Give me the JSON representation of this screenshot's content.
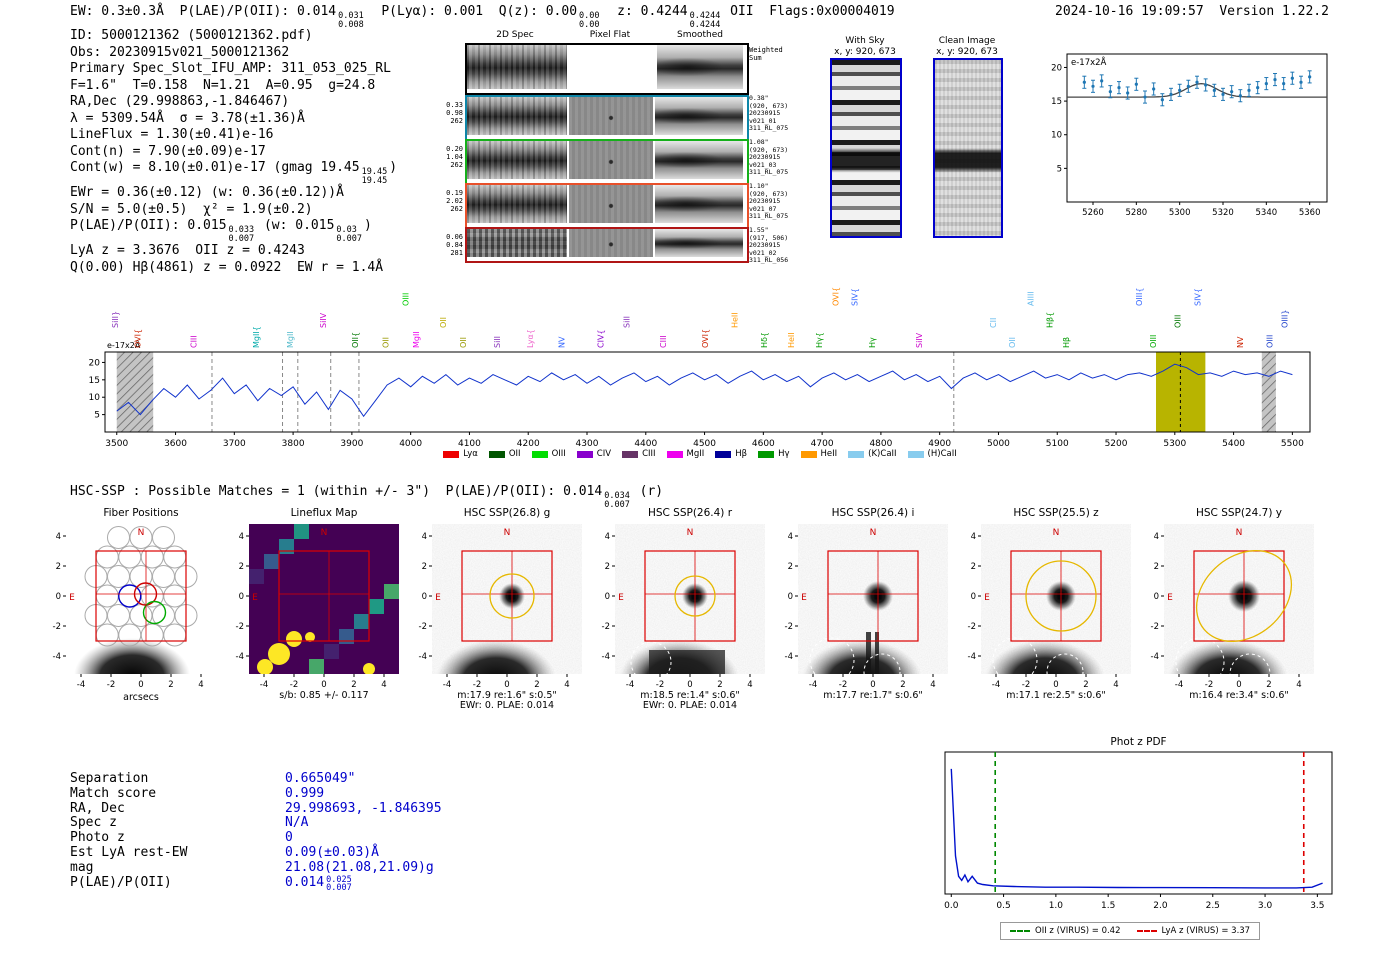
{
  "header_left": [
    {
      "t": "EW: 0.3±0.3Å  P(LAE)/P(OII): 0.014"
    },
    {
      "f": [
        "0.031",
        "0.008"
      ]
    },
    {
      "t": "  P(Lyα): 0.001  Q(z): 0.00"
    },
    {
      "f": [
        "0.00",
        "0.00"
      ]
    },
    {
      "t": "  z: 0.4244"
    },
    {
      "f": [
        "0.4244",
        "0.4244"
      ]
    },
    {
      "t": " OII  Flags:0x00004019"
    }
  ],
  "header_right": "2024-10-16 19:09:57  Version 1.22.2",
  "info_lines": [
    [
      {
        "t": "ID: 5000121362 (5000121362.pdf)"
      }
    ],
    [
      {
        "t": "Obs: 20230915v021_5000121362"
      }
    ],
    [
      {
        "t": "Primary Spec_Slot_IFU_AMP: 311_053_025_RL"
      }
    ],
    [
      {
        "t": "F=1.6\"  T=0.158  N=1.21  A=0.95  g=24.8"
      }
    ],
    [
      {
        "t": "RA,Dec (29.998863,-1.846467)"
      }
    ],
    [
      {
        "t": "λ = 5309.54Å  σ = 3.78(±1.36)Å"
      }
    ],
    [
      {
        "t": "LineFlux = 1.30(±0.41)e-16"
      }
    ],
    [
      {
        "t": "Cont(n) = 7.90(±0.09)e-17"
      }
    ],
    [
      {
        "t": "Cont(w) = 8.10(±0.01)e-17 (gmag 19.45"
      },
      {
        "f": [
          "19.45",
          "19.45"
        ]
      },
      {
        "t": ")"
      }
    ],
    [
      {
        "t": "EWr = 0.36(±0.12) (w: 0.36(±0.12))Å"
      }
    ],
    [
      {
        "t": "S/N = 5.0(±0.5)  χ² = 1.9(±0.2)"
      }
    ],
    [
      {
        "t": "P(LAE)/P(OII): 0.015"
      },
      {
        "f": [
          "0.033",
          "0.007"
        ]
      },
      {
        "t": " (w: 0.015"
      },
      {
        "f": [
          "0.03",
          "0.007"
        ]
      },
      {
        "t": ")"
      }
    ],
    [
      {
        "t": "LyA z = 3.3676  OII z = 0.4243"
      }
    ],
    [
      {
        "t": "Q(0.00) Hβ(4861) z = 0.0922  EW r = 1.4Å"
      }
    ]
  ],
  "spec2d": {
    "col_titles": [
      "2D Spec",
      "Pixel Flat",
      "Smoothed"
    ],
    "weighted": [
      "Weighted",
      "Sum"
    ],
    "rows": [
      {
        "color": "#0e86a8",
        "left": [
          "0.33",
          "0.98",
          "262"
        ],
        "right": [
          "0.38\"",
          "(920, 673)",
          "20230915",
          "v021_01",
          "311_RL_075"
        ]
      },
      {
        "color": "#15b01a",
        "left": [
          "0.20",
          "1.04",
          "262"
        ],
        "right": [
          "1.08\"",
          "(920, 673)",
          "20230915",
          "v021_03",
          "311_RL_075"
        ]
      },
      {
        "color": "#e8502a",
        "left": [
          "0.19",
          "2.02",
          "262"
        ],
        "right": [
          "1.10\"",
          "(920, 673)",
          "20230915",
          "v021_07",
          "311_RL_075"
        ]
      },
      {
        "color": "#b01515",
        "left": [
          "0.06",
          "0.84",
          "281"
        ],
        "right": [
          "1.55\"",
          "(917, 506)",
          "20230915",
          "v021_02",
          "311_RL_056"
        ]
      }
    ]
  },
  "withsky": {
    "title": "With Sky",
    "coords": "x, y: 920, 673"
  },
  "clean": {
    "title": "Clean Image",
    "coords": "x, y: 920, 673"
  },
  "hsc_line": [
    {
      "t": "HSC-SSP : Possible Matches = 1 (within +/- 3\")  P(LAE)/P(OII): 0.014"
    },
    {
      "f": [
        "0.034",
        "0.007"
      ]
    },
    {
      "t": " (r)"
    }
  ],
  "cutouts": {
    "xlabel": "arcsecs",
    "ticks": [
      -4,
      -2,
      0,
      2,
      4
    ],
    "compass": {
      "n": "N",
      "e": "E"
    },
    "panels": [
      {
        "title": "Fiber Positions",
        "captions": []
      },
      {
        "title": "Lineflux Map",
        "captions": [
          "s/b: 0.85 +/- 0.117"
        ]
      },
      {
        "title": "HSC SSP(26.8) g",
        "captions": [
          "m:17.9 re:1.6\" s:0.5\"",
          "EWr: 0. PLAE: 0.014"
        ]
      },
      {
        "title": "HSC SSP(26.4) r",
        "captions": [
          "m:18.5 re:1.4\" s:0.6\"",
          "EWr: 0. PLAE: 0.014"
        ]
      },
      {
        "title": "HSC SSP(26.4) i",
        "captions": [
          "m:17.7 re:1.7\" s:0.6\""
        ]
      },
      {
        "title": "HSC SSP(25.5) z",
        "captions": [
          "m:17.1 re:2.5\" s:0.6\""
        ]
      },
      {
        "title": "HSC SSP(24.7) y",
        "captions": [
          "m:16.4 re:3.4\" s:0.6\""
        ]
      }
    ]
  },
  "match_rows": [
    {
      "label": "Separation",
      "segs": [
        {
          "t": "0.665049\""
        }
      ]
    },
    {
      "label": "Match score",
      "segs": [
        {
          "t": "0.999"
        }
      ]
    },
    {
      "label": "RA, Dec",
      "segs": [
        {
          "t": "29.998693, -1.846395"
        }
      ]
    },
    {
      "label": "Spec z",
      "segs": [
        {
          "t": "N/A"
        }
      ]
    },
    {
      "label": "Photo z",
      "segs": [
        {
          "t": "0"
        }
      ]
    },
    {
      "label": "Est LyA rest-EW",
      "segs": [
        {
          "t": "0.09(±0.03)Å"
        }
      ]
    },
    {
      "label": "mag",
      "segs": [
        {
          "t": "21.08(21.08,21.09)g"
        }
      ]
    },
    {
      "label": "P(LAE)/P(OII)",
      "segs": [
        {
          "t": "0.014"
        },
        {
          "f": [
            "0.025",
            "0.007"
          ]
        }
      ]
    }
  ],
  "chart_data": [
    {
      "id": "line_fit_inset",
      "type": "scatter",
      "unit_label": "e-17x2Å",
      "xlim": [
        5248,
        5368
      ],
      "ylim": [
        0,
        22
      ],
      "xticks": [
        5260,
        5280,
        5300,
        5320,
        5340,
        5360
      ],
      "yticks": [
        5,
        10,
        15,
        20
      ],
      "x_start": 5256,
      "x_step": 4,
      "y": [
        17.8,
        17.2,
        18.0,
        16.4,
        17.0,
        16.2,
        17.5,
        15.6,
        16.8,
        15.2,
        16.0,
        16.6,
        17.2,
        17.8,
        17.4,
        16.6,
        16.0,
        16.4,
        15.8,
        16.6,
        17.0,
        17.6,
        18.2,
        17.6,
        18.4,
        17.8,
        18.6
      ],
      "yerr": 0.9,
      "fit": {
        "baseline": 15.6,
        "amplitude": 2.0,
        "center": 5310,
        "sigma": 7
      }
    },
    {
      "id": "full_spectrum",
      "type": "line",
      "unit_label": "e-17x2Å",
      "xlim": [
        3480,
        5530
      ],
      "ylim": [
        0,
        23
      ],
      "xticks": [
        3500,
        3600,
        3700,
        3800,
        3900,
        4000,
        4100,
        4200,
        4300,
        4400,
        4500,
        4600,
        4700,
        4800,
        4900,
        5000,
        5100,
        5200,
        5300,
        5400,
        5500
      ],
      "yticks": [
        5,
        10,
        15,
        20
      ],
      "wave_start": 3500,
      "wave_step": 20,
      "flux": [
        6.0,
        8.5,
        5.0,
        9.0,
        12.5,
        10.0,
        13.5,
        9.5,
        12.0,
        15.5,
        11.0,
        13.5,
        9.0,
        12.5,
        10.5,
        13.0,
        8.0,
        11.5,
        6.5,
        12.0,
        9.5,
        4.5,
        9.0,
        13.5,
        15.5,
        13.0,
        16.0,
        14.0,
        16.5,
        13.5,
        15.5,
        14.0,
        16.5,
        15.0,
        13.5,
        16.0,
        14.5,
        17.0,
        15.0,
        16.5,
        14.0,
        16.0,
        13.5,
        15.5,
        17.0,
        14.5,
        16.0,
        13.5,
        15.5,
        17.0,
        15.0,
        16.5,
        14.0,
        16.0,
        17.5,
        15.0,
        16.5,
        14.5,
        16.0,
        13.0,
        15.5,
        17.0,
        15.0,
        16.5,
        14.5,
        16.0,
        17.5,
        15.0,
        16.5,
        14.5,
        16.0,
        12.5,
        15.5,
        17.0,
        15.0,
        16.5,
        14.5,
        16.0,
        17.5,
        15.5,
        16.5,
        15.0,
        17.0,
        15.5,
        16.5,
        15.0,
        16.5,
        17.0,
        16.0,
        17.5,
        19.5,
        18.5,
        16.5,
        17.0,
        16.0,
        17.5,
        16.5,
        17.0,
        16.0,
        17.5,
        16.5
      ],
      "detection_wavelength": 5309.5,
      "highlight_band": [
        5268,
        5352
      ],
      "hatch_bands": [
        [
          3500,
          3562
        ],
        [
          5448,
          5472
        ]
      ],
      "dashed_gray": [
        3662,
        3782,
        3808,
        3864,
        3912,
        4924
      ],
      "line_labels": [
        {
          "text": "SiII}",
          "x": 3502,
          "color": "#8833bb",
          "tier": 1
        },
        {
          "text": "OVI{",
          "x": 3540,
          "color": "#cc2200",
          "tier": 0
        },
        {
          "text": "CIII",
          "x": 3636,
          "color": "#cc00cc",
          "tier": 0
        },
        {
          "text": "MgII{",
          "x": 3742,
          "color": "#00aaaa",
          "tier": 0
        },
        {
          "text": "MgII",
          "x": 3800,
          "color": "#55bbcc",
          "tier": 0
        },
        {
          "text": "SiIV",
          "x": 3856,
          "color": "#cc00cc",
          "tier": 1
        },
        {
          "text": "OII{",
          "x": 3910,
          "color": "#007700",
          "tier": 0
        },
        {
          "text": "OII",
          "x": 3962,
          "color": "#999900",
          "tier": 0
        },
        {
          "text": "OIII",
          "x": 3996,
          "color": "#00cc00",
          "tier": 2
        },
        {
          "text": "MgII",
          "x": 4014,
          "color": "#ee00ee",
          "tier": 0
        },
        {
          "text": "OII",
          "x": 4060,
          "color": "#bbaa00",
          "tier": 1
        },
        {
          "text": "OII",
          "x": 4094,
          "color": "#999900",
          "tier": 0
        },
        {
          "text": "SiII",
          "x": 4152,
          "color": "#8833bb",
          "tier": 0
        },
        {
          "text": "Lyα{",
          "x": 4208,
          "color": "#ee66cc",
          "tier": 0
        },
        {
          "text": "NV",
          "x": 4262,
          "color": "#3366ff",
          "tier": 0
        },
        {
          "text": "CIV{",
          "x": 4328,
          "color": "#8800cc",
          "tier": 0
        },
        {
          "text": "SiII",
          "x": 4372,
          "color": "#8833bb",
          "tier": 1
        },
        {
          "text": "CIII",
          "x": 4434,
          "color": "#cc00cc",
          "tier": 0
        },
        {
          "text": "OVI{",
          "x": 4506,
          "color": "#cc2200",
          "tier": 0
        },
        {
          "text": "HeII",
          "x": 4556,
          "color": "#ff9900",
          "tier": 1
        },
        {
          "text": "Hδ{",
          "x": 4606,
          "color": "#009900",
          "tier": 0
        },
        {
          "text": "HeII",
          "x": 4652,
          "color": "#ff9900",
          "tier": 0
        },
        {
          "text": "Hγ{",
          "x": 4700,
          "color": "#009900",
          "tier": 0
        },
        {
          "text": "OVI{",
          "x": 4728,
          "color": "#ff8800",
          "tier": 2
        },
        {
          "text": "SIV{",
          "x": 4760,
          "color": "#3366ff",
          "tier": 2
        },
        {
          "text": "Hγ",
          "x": 4790,
          "color": "#009900",
          "tier": 0
        },
        {
          "text": "SiIV",
          "x": 4870,
          "color": "#cc00cc",
          "tier": 0
        },
        {
          "text": "CII",
          "x": 4996,
          "color": "#66bbee",
          "tier": 1
        },
        {
          "text": "OII",
          "x": 5028,
          "color": "#66bbee",
          "tier": 0
        },
        {
          "text": "AlIII",
          "x": 5060,
          "color": "#66bbee",
          "tier": 2
        },
        {
          "text": "Hβ{",
          "x": 5092,
          "color": "#009900",
          "tier": 1
        },
        {
          "text": "Hβ",
          "x": 5120,
          "color": "#009900",
          "tier": 0
        },
        {
          "text": "OIII{",
          "x": 5244,
          "color": "#3366ff",
          "tier": 2
        },
        {
          "text": "OIII",
          "x": 5268,
          "color": "#00aa00",
          "tier": 0
        },
        {
          "text": "OIII",
          "x": 5310,
          "color": "#007700",
          "tier": 1
        },
        {
          "text": "SIV{",
          "x": 5344,
          "color": "#3366ff",
          "tier": 2
        },
        {
          "text": "NV",
          "x": 5416,
          "color": "#cc2200",
          "tier": 0
        },
        {
          "text": "OIII",
          "x": 5466,
          "color": "#2244cc",
          "tier": 0
        },
        {
          "text": "OIII}",
          "x": 5492,
          "color": "#2244cc",
          "tier": 1
        }
      ],
      "legend": [
        {
          "label": "Lyα",
          "color": "#ee0000"
        },
        {
          "label": "OII",
          "color": "#005500"
        },
        {
          "label": "OIII",
          "color": "#00dd00"
        },
        {
          "label": "CIV",
          "color": "#8800cc"
        },
        {
          "label": "CIII",
          "color": "#663366"
        },
        {
          "label": "MgII",
          "color": "#ee00ee"
        },
        {
          "label": "Hβ",
          "color": "#000099"
        },
        {
          "label": "Hγ",
          "color": "#009900"
        },
        {
          "label": "HeII",
          "color": "#ff9900"
        },
        {
          "label": "(K)CaII",
          "color": "#88ccee"
        },
        {
          "label": "(H)CaII",
          "color": "#88ccee"
        }
      ]
    },
    {
      "id": "phot_z_pdf",
      "type": "line",
      "title": "Phot z PDF",
      "xlim": [
        -0.06,
        3.64
      ],
      "ylim": [
        0,
        1
      ],
      "xticks": [
        0.0,
        0.5,
        1.0,
        1.5,
        2.0,
        2.5,
        3.0,
        3.5
      ],
      "x": [
        0.0,
        0.02,
        0.04,
        0.07,
        0.1,
        0.13,
        0.16,
        0.2,
        0.25,
        0.3,
        0.4,
        0.6,
        0.9,
        1.2,
        1.6,
        2.0,
        2.5,
        3.0,
        3.3,
        3.45,
        3.55
      ],
      "y": [
        0.92,
        0.6,
        0.28,
        0.13,
        0.1,
        0.14,
        0.09,
        0.13,
        0.08,
        0.07,
        0.06,
        0.055,
        0.05,
        0.05,
        0.048,
        0.047,
        0.046,
        0.045,
        0.045,
        0.05,
        0.08
      ],
      "vlines": [
        {
          "x": 0.42,
          "color": "#008800",
          "label": "OII z (VIRUS) = 0.42"
        },
        {
          "x": 3.37,
          "color": "#dd0000",
          "label": "LyA z (VIRUS) = 3.37"
        }
      ]
    }
  ]
}
